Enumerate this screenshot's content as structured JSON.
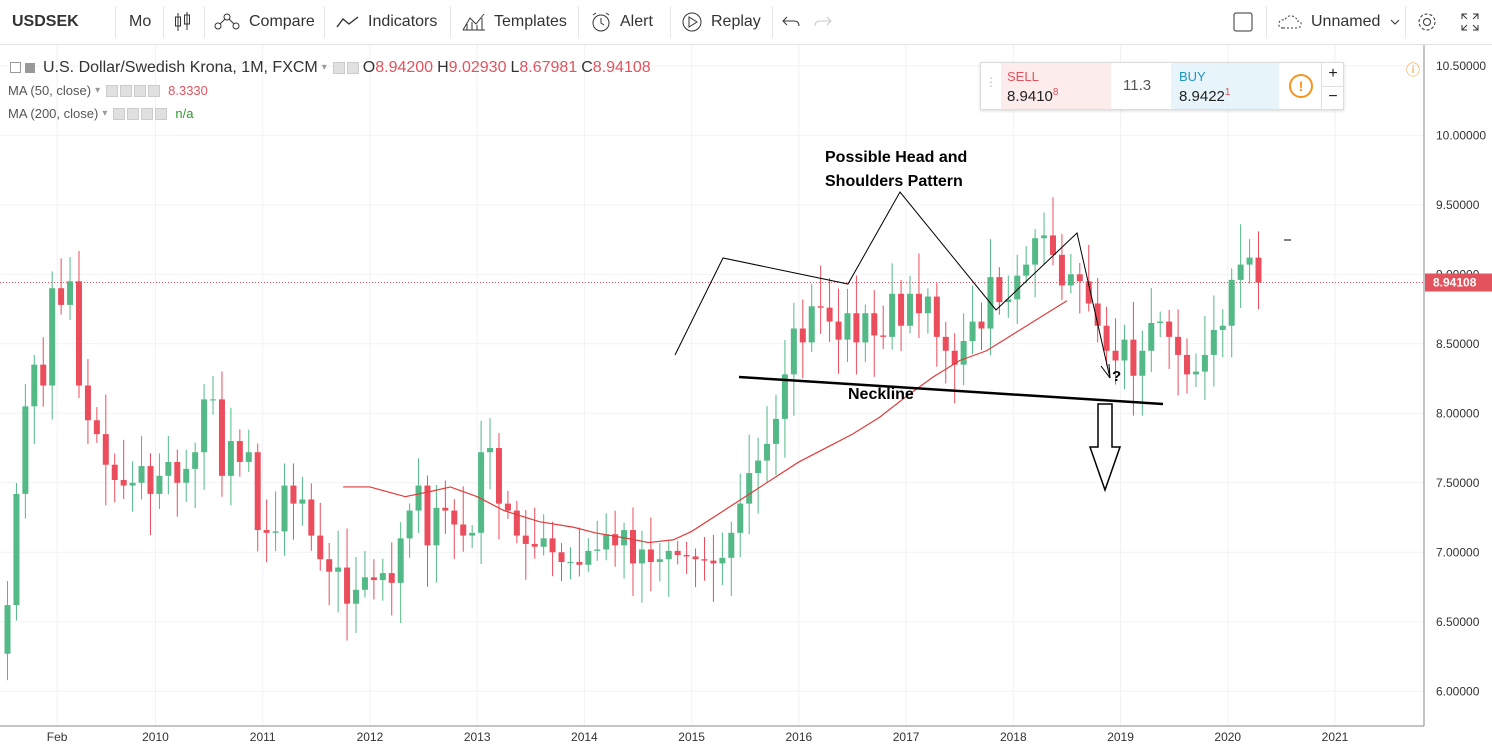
{
  "toolbar": {
    "symbol": "USDSEK",
    "interval": "Mo",
    "compare": "Compare",
    "indicators": "Indicators",
    "templates": "Templates",
    "alert": "Alert",
    "replay": "Replay",
    "layout_name": "Unnamed"
  },
  "legend": {
    "title": "U.S. Dollar/Swedish Krona, 1M, FXCM",
    "open_label": "O",
    "open": "8.94200",
    "high_label": "H",
    "high": "9.02930",
    "low_label": "L",
    "low": "8.67981",
    "close_label": "C",
    "close": "8.94108",
    "ma50_label": "MA (50, close)",
    "ma50_value": "8.3330",
    "ma200_label": "MA (200, close)",
    "ma200_value": "n/a"
  },
  "trade": {
    "sell_label": "SELL",
    "sell_price": "8.9410",
    "sell_sup": "8",
    "spread": "11.3",
    "buy_label": "BUY",
    "buy_price": "8.9422",
    "buy_sup": "1",
    "plus": "+",
    "minus": "−",
    "warn": "!"
  },
  "colors": {
    "up": "#53b987",
    "down": "#eb4d5c",
    "ma50": "#e23b3b",
    "price_line": "#e2535e",
    "annot": "#000000"
  },
  "chart_data": {
    "type": "candlestick",
    "title": "U.S. Dollar/Swedish Krona, 1M, FXCM",
    "y_ticks": [
      "6.00000",
      "6.50000",
      "7.00000",
      "7.50000",
      "8.00000",
      "8.50000",
      "9.00000",
      "9.50000",
      "10.00000",
      "10.50000"
    ],
    "y_tick_values": [
      6.0,
      6.5,
      7.0,
      7.5,
      8.0,
      8.5,
      9.0,
      9.5,
      10.0,
      10.5
    ],
    "ylim": [
      5.75,
      10.65
    ],
    "x_ticks": [
      "Feb",
      "2010",
      "2011",
      "2012",
      "2013",
      "2014",
      "2015",
      "2016",
      "2017",
      "2018",
      "2019",
      "2020",
      "2021"
    ],
    "x_tick_values": [
      2009.083,
      2010,
      2011,
      2012,
      2013,
      2014,
      2015,
      2016,
      2017,
      2018,
      2019,
      2020,
      2021
    ],
    "xlim": [
      2008.55,
      2021.83
    ],
    "last_price": "8.94108",
    "last_price_value": 8.94108,
    "close_series": [
      6.62,
      7.42,
      8.05,
      8.35,
      8.2,
      8.9,
      8.78,
      8.95,
      8.2,
      7.95,
      7.85,
      7.63,
      7.52,
      7.48,
      7.5,
      7.62,
      7.42,
      7.55,
      7.65,
      7.5,
      7.6,
      7.72,
      8.1,
      8.1,
      7.55,
      7.8,
      7.65,
      7.72,
      7.16,
      7.14,
      7.15,
      7.48,
      7.35,
      7.38,
      7.12,
      6.95,
      6.86,
      6.89,
      6.63,
      6.73,
      6.82,
      6.8,
      6.85,
      6.78,
      7.1,
      7.3,
      7.48,
      7.05,
      7.32,
      7.3,
      7.2,
      7.12,
      7.14,
      7.72,
      7.75,
      7.35,
      7.3,
      7.12,
      7.06,
      7.04,
      7.1,
      7.0,
      6.93,
      6.93,
      6.91,
      7.01,
      7.02,
      7.13,
      7.05,
      7.16,
      6.92,
      7.02,
      6.93,
      6.95,
      7.01,
      6.98,
      6.97,
      6.95,
      6.94,
      6.92,
      6.96,
      7.14,
      7.35,
      7.57,
      7.66,
      7.78,
      7.96,
      8.28,
      8.61,
      8.51,
      8.77,
      8.76,
      8.66,
      8.53,
      8.72,
      8.51,
      8.72,
      8.56,
      8.55,
      8.86,
      8.63,
      8.86,
      8.72,
      8.84,
      8.55,
      8.45,
      8.35,
      8.52,
      8.66,
      8.61,
      8.98,
      8.8,
      8.82,
      8.99,
      9.07,
      9.26,
      9.28,
      9.14,
      8.92,
      9.0,
      8.95,
      8.79,
      8.63,
      8.45,
      8.38,
      8.53,
      8.27,
      8.45,
      8.65,
      8.66,
      8.55,
      8.42,
      8.28,
      8.3,
      8.42,
      8.6,
      8.63,
      8.96,
      9.07,
      9.12,
      8.94108
    ],
    "ma50_series": [
      [
        2011.75,
        7.47
      ],
      [
        2012.0,
        7.47
      ],
      [
        2012.33,
        7.4
      ],
      [
        2012.58,
        7.44
      ],
      [
        2012.75,
        7.47
      ],
      [
        2013.0,
        7.4
      ],
      [
        2013.25,
        7.3
      ],
      [
        2013.58,
        7.22
      ],
      [
        2013.9,
        7.18
      ],
      [
        2014.1,
        7.14
      ],
      [
        2014.4,
        7.1
      ],
      [
        2014.6,
        7.07
      ],
      [
        2014.83,
        7.09
      ],
      [
        2015.0,
        7.15
      ],
      [
        2015.3,
        7.3
      ],
      [
        2015.6,
        7.45
      ],
      [
        2016.0,
        7.65
      ],
      [
        2016.25,
        7.75
      ],
      [
        2016.5,
        7.85
      ],
      [
        2016.75,
        7.97
      ],
      [
        2017.0,
        8.12
      ],
      [
        2017.25,
        8.26
      ],
      [
        2017.5,
        8.38
      ],
      [
        2017.75,
        8.45
      ],
      [
        2018.0,
        8.57
      ],
      [
        2018.25,
        8.69
      ],
      [
        2018.5,
        8.81
      ]
    ],
    "annotations": {
      "head_shoulders_label_line1": "Possible Head and",
      "head_shoulders_label_line2": "Shoulders Pattern",
      "neckline_label": "Neckline",
      "question_mark": "?"
    }
  }
}
